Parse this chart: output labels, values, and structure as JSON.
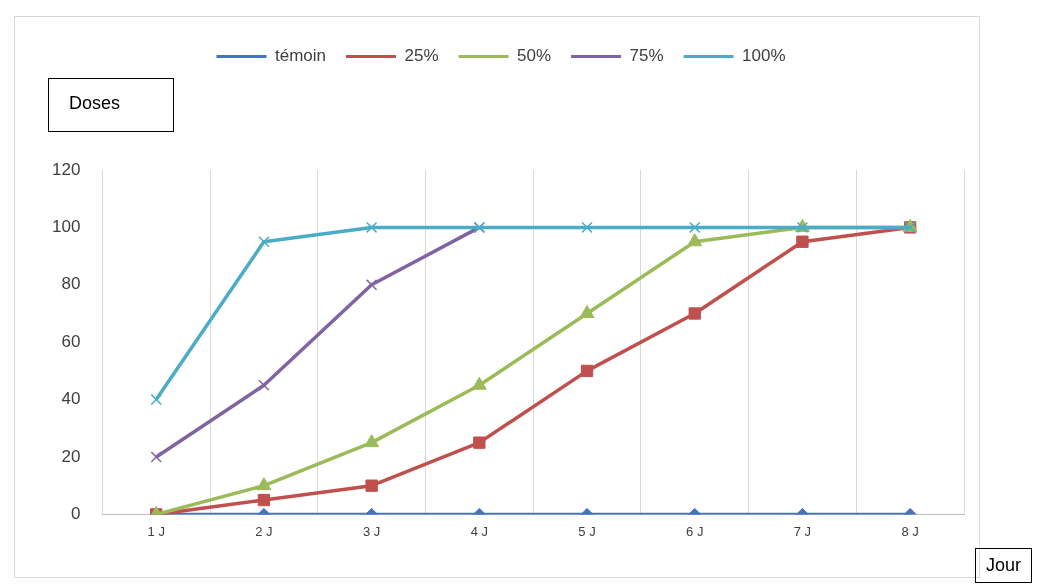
{
  "chart_data": {
    "type": "line",
    "xlabel": "Jour",
    "ylabel": "Doses",
    "categories": [
      "1 J",
      "2 J",
      "3 J",
      "4 J",
      "5 J",
      "6 J",
      "7 J",
      "8 J"
    ],
    "series": [
      {
        "name": "témoin",
        "color": "#4472c4",
        "marker": "diamond",
        "values": [
          0,
          0,
          0,
          0,
          0,
          0,
          0,
          0
        ]
      },
      {
        "name": "25%",
        "color": "#c0504d",
        "marker": "square",
        "values": [
          0,
          5,
          10,
          25,
          50,
          70,
          95,
          100
        ]
      },
      {
        "name": "50%",
        "color": "#9bbb59",
        "marker": "triangle",
        "values": [
          0,
          10,
          25,
          45,
          70,
          95,
          100,
          100
        ]
      },
      {
        "name": "75%",
        "color": "#8064a2",
        "marker": "cross",
        "values": [
          20,
          45,
          80,
          100,
          null,
          null,
          null,
          null
        ]
      },
      {
        "name": "100%",
        "color": "#4bacc6",
        "marker": "cross",
        "values": [
          40,
          95,
          100,
          100,
          100,
          100,
          100,
          100
        ]
      }
    ],
    "ylim": [
      0,
      120
    ],
    "yticks": [
      0,
      20,
      40,
      60,
      80,
      100,
      120
    ],
    "grid": "x",
    "legend": "top",
    "line_style": "solid"
  }
}
